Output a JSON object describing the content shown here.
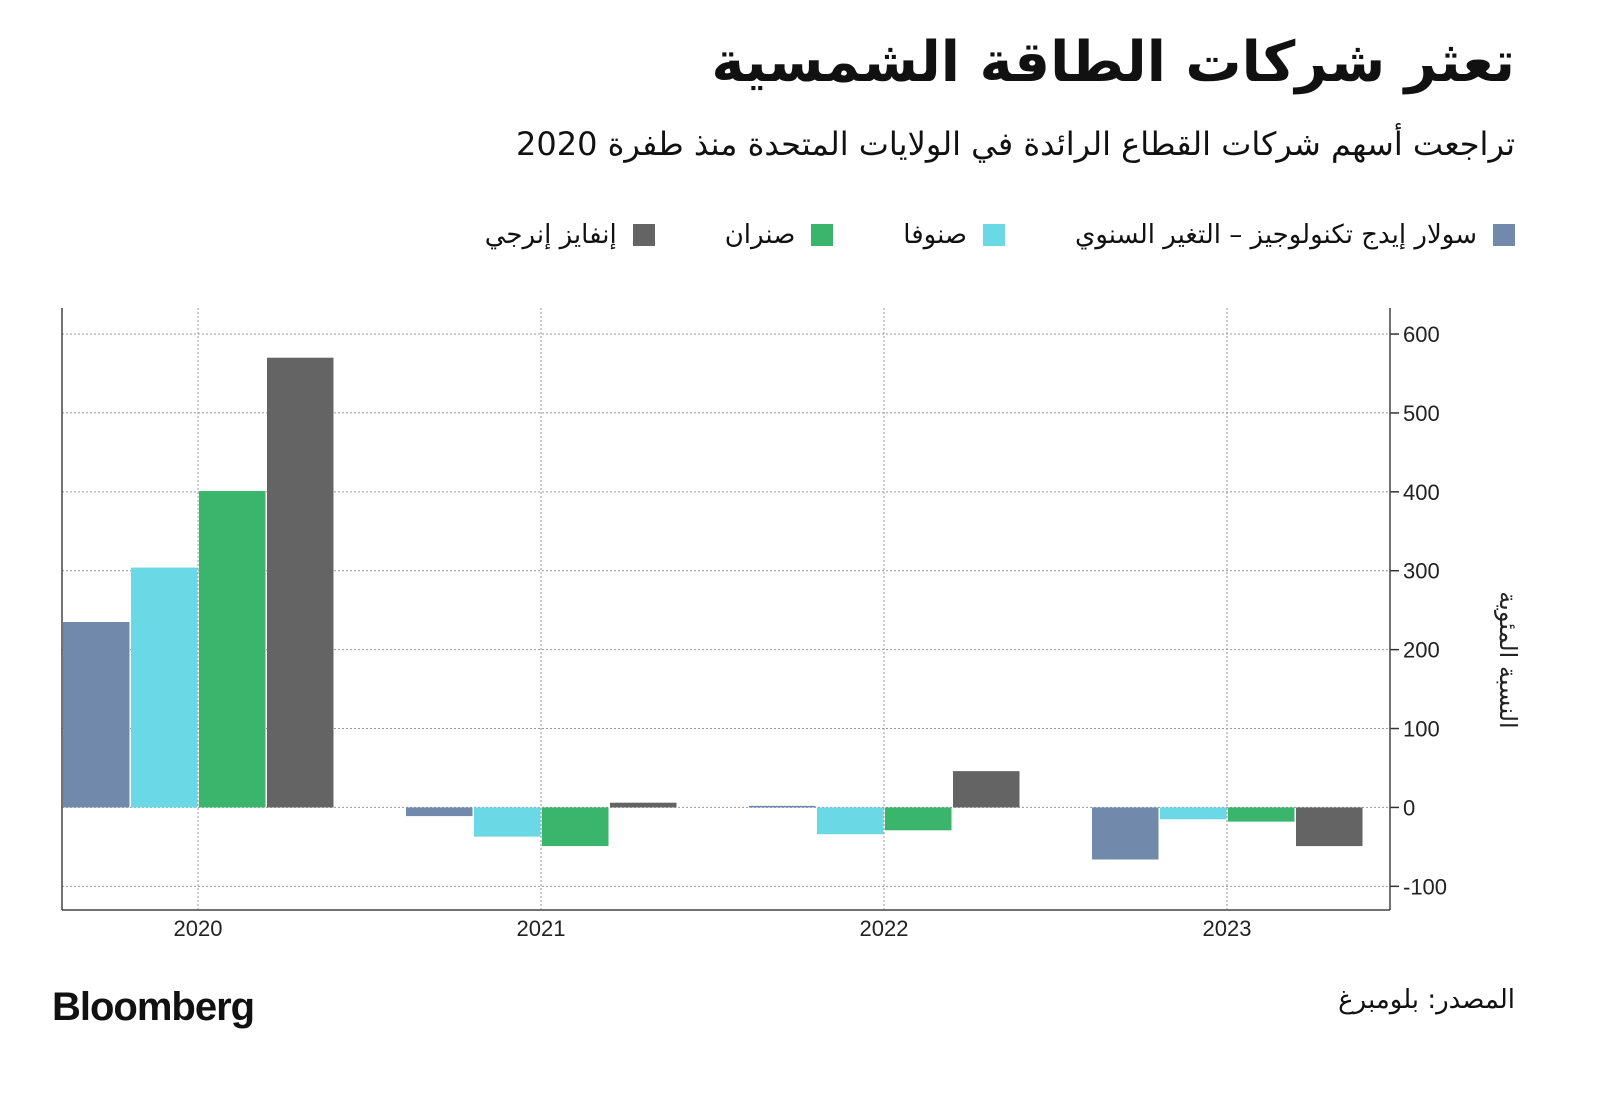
{
  "chart_data": {
    "type": "bar",
    "title": "تعثر شركات الطاقة الشمسية",
    "subtitle": "تراجعت أسهم شركات القطاع الرائدة في الولايات المتحدة منذ طفرة 2020",
    "y_label": "النسبة المئوية",
    "categories": [
      "2020",
      "2021",
      "2022",
      "2023"
    ],
    "series": [
      {
        "name": "سولار إيدج تكنولوجيز – التغير السنوي",
        "color": "#7189ab",
        "values": [
          235,
          -11,
          2,
          -66
        ]
      },
      {
        "name": "صنوفا",
        "color": "#6ad8e5",
        "values": [
          304,
          -37,
          -34,
          -15
        ]
      },
      {
        "name": "صنران",
        "color": "#3ab56b",
        "values": [
          401,
          -49,
          -29,
          -18
        ]
      },
      {
        "name": "إنفايز إنرجي",
        "color": "#646464",
        "values": [
          570,
          6,
          46,
          -49
        ]
      }
    ],
    "ylim": [
      -130,
      633
    ],
    "yticks": [
      -100,
      0,
      100,
      200,
      300,
      400,
      500,
      600
    ],
    "grid": true,
    "source": "المصدر: بلومبرغ",
    "brand": "Bloomberg"
  }
}
